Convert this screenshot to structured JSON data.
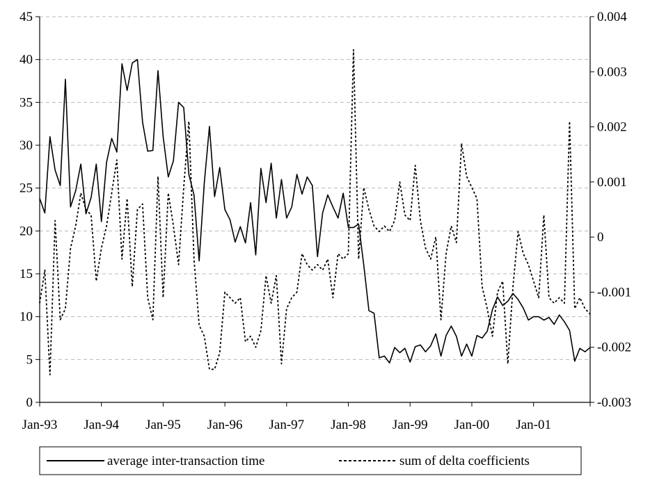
{
  "chart_data": {
    "type": "line",
    "x_labels": [
      "Jan-93",
      "Jan-94",
      "Jan-95",
      "Jan-96",
      "Jan-97",
      "Jan-98",
      "Jan-99",
      "Jan-00",
      "Jan-01"
    ],
    "y_left": {
      "ticks": [
        0,
        5,
        10,
        15,
        20,
        25,
        30,
        35,
        40,
        45
      ],
      "tick_labels": [
        "0",
        "5",
        "10",
        "15",
        "20",
        "25",
        "30",
        "35",
        "40",
        "45"
      ],
      "range": [
        0,
        45
      ]
    },
    "y_right": {
      "ticks": [
        -0.003,
        -0.002,
        -0.001,
        0,
        0.001,
        0.002,
        0.003,
        0.004
      ],
      "tick_labels": [
        "-0.003",
        "-0.002",
        "-0.001",
        "0",
        "0.001",
        "0.002",
        "0.003",
        "0.004"
      ],
      "range": [
        -0.003,
        0.004
      ]
    },
    "grid": "horizontal dashed",
    "legend_position": "bottom",
    "series": [
      {
        "name": "average inter-transaction time",
        "axis": "left",
        "style": "solid",
        "values": [
          23.8,
          22.1,
          31.0,
          27.1,
          25.3,
          37.7,
          22.8,
          24.7,
          27.8,
          22.0,
          23.9,
          27.8,
          21.1,
          28.0,
          30.8,
          29.2,
          39.5,
          36.4,
          39.6,
          40.0,
          32.7,
          29.3,
          29.4,
          38.7,
          31.0,
          26.3,
          28.2,
          35.0,
          34.4,
          26.6,
          24.2,
          16.5,
          25.6,
          32.2,
          24.0,
          27.4,
          22.5,
          21.3,
          18.7,
          20.5,
          18.6,
          23.3,
          17.2,
          27.3,
          23.3,
          27.9,
          21.5,
          26.0,
          21.5,
          22.8,
          26.6,
          24.3,
          26.3,
          25.3,
          17.0,
          22.1,
          24.2,
          22.8,
          21.5,
          24.4,
          20.4,
          20.4,
          20.8,
          16.0,
          10.7,
          10.4,
          5.2,
          5.4,
          4.6,
          6.4,
          5.8,
          6.3,
          4.7,
          6.5,
          6.7,
          5.9,
          6.6,
          8.0,
          5.4,
          7.8,
          8.9,
          7.7,
          5.4,
          6.8,
          5.4,
          7.8,
          7.5,
          8.3,
          10.8,
          12.3,
          11.3,
          11.8,
          12.7,
          12.0,
          11.0,
          9.6,
          10.0,
          10.0,
          9.6,
          9.9,
          9.1,
          10.2,
          9.4,
          8.4,
          4.8,
          6.3,
          5.9,
          6.4
        ]
      },
      {
        "name": "sum of delta coefficients",
        "axis": "right",
        "style": "dashed",
        "values": [
          -0.0012,
          -0.0006,
          -0.0025,
          0.0003,
          -0.0015,
          -0.0013,
          -0.0002,
          0.0002,
          0.0008,
          0.0005,
          0.0004,
          -0.0008,
          -0.0002,
          0.0002,
          0.0008,
          0.0014,
          -0.0004,
          0.0007,
          -0.0009,
          0.0005,
          0.0006,
          -0.0011,
          -0.0015,
          0.0011,
          -0.0011,
          0.0008,
          0.0002,
          -0.0005,
          0.0009,
          0.0021,
          -0.0004,
          -0.0016,
          -0.0018,
          -0.0024,
          -0.0024,
          -0.0021,
          -0.001,
          -0.0011,
          -0.0012,
          -0.0011,
          -0.0019,
          -0.0018,
          -0.002,
          -0.0017,
          -0.0007,
          -0.0012,
          -0.0007,
          -0.0023,
          -0.0013,
          -0.0011,
          -0.001,
          -0.0003,
          -0.0005,
          -0.0006,
          -0.0005,
          -0.0006,
          -0.0004,
          -0.0011,
          -0.0003,
          -0.0004,
          -0.0003,
          0.0034,
          -0.0004,
          0.0009,
          0.0005,
          0.0002,
          0.0001,
          0.0002,
          0.0001,
          0.0003,
          0.001,
          0.0004,
          0.0003,
          0.0013,
          0.0003,
          -0.0002,
          -0.0004,
          0.0,
          -0.0015,
          -0.0003,
          0.0002,
          -0.0001,
          0.0017,
          0.0011,
          0.0009,
          0.0007,
          -0.0009,
          -0.0013,
          -0.0018,
          -0.001,
          -0.0008,
          -0.0023,
          -0.0009,
          0.0001,
          -0.0003,
          -0.0005,
          -0.0008,
          -0.0011,
          0.0004,
          -0.0011,
          -0.0012,
          -0.0011,
          -0.0012,
          0.0021,
          -0.0013,
          -0.0011,
          -0.0013,
          -0.0014
        ]
      }
    ]
  }
}
